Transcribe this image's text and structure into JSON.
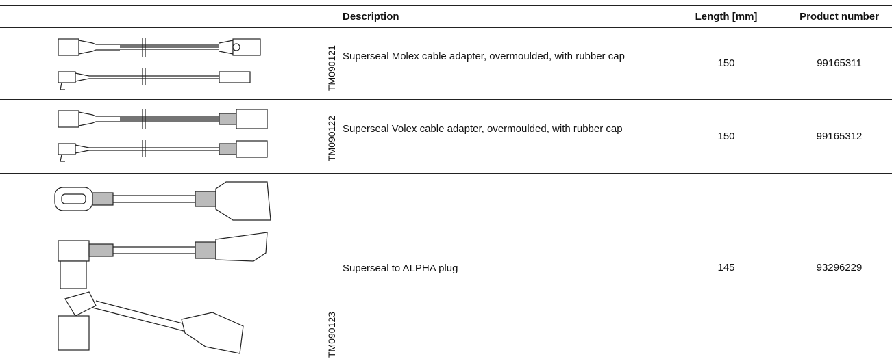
{
  "header": {
    "description": "Description",
    "length": "Length [mm]",
    "product_number": "Product number"
  },
  "rows": [
    {
      "image_code": "TM090121",
      "description": "Superseal Molex cable adapter, overmoulded, with rubber cap",
      "length": "150",
      "product_number": "99165311"
    },
    {
      "image_code": "TM090122",
      "description": "Superseal Volex cable adapter, overmoulded, with rubber cap",
      "length": "150",
      "product_number": "99165312"
    },
    {
      "image_code": "TM090123",
      "description": "Superseal to ALPHA plug",
      "length": "145",
      "product_number": "93296229"
    }
  ]
}
